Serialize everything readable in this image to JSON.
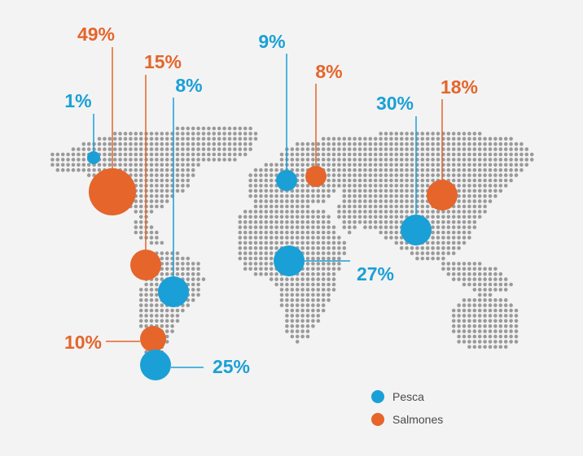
{
  "colors": {
    "pesca": "#1aa0d6",
    "salmones": "#e5652b",
    "dots": "#9a9a9a",
    "background": "#f3f3f3"
  },
  "legend": [
    {
      "label": "Pesca",
      "series": "pesca"
    },
    {
      "label": "Salmones",
      "series": "salmones"
    }
  ],
  "markers": [
    {
      "label": "49%",
      "series": "salmones",
      "value": 49
    },
    {
      "label": "1%",
      "series": "pesca",
      "value": 1
    },
    {
      "label": "15%",
      "series": "salmones",
      "value": 15
    },
    {
      "label": "8%",
      "series": "pesca",
      "value": 8
    },
    {
      "label": "10%",
      "series": "salmones",
      "value": 10
    },
    {
      "label": "25%",
      "series": "pesca",
      "value": 25
    },
    {
      "label": "9%",
      "series": "pesca",
      "value": 9
    },
    {
      "label": "8%",
      "series": "salmones",
      "value": 8
    },
    {
      "label": "27%",
      "series": "pesca",
      "value": 27
    },
    {
      "label": "30%",
      "series": "pesca",
      "value": 30
    },
    {
      "label": "18%",
      "series": "salmones",
      "value": 18
    }
  ]
}
